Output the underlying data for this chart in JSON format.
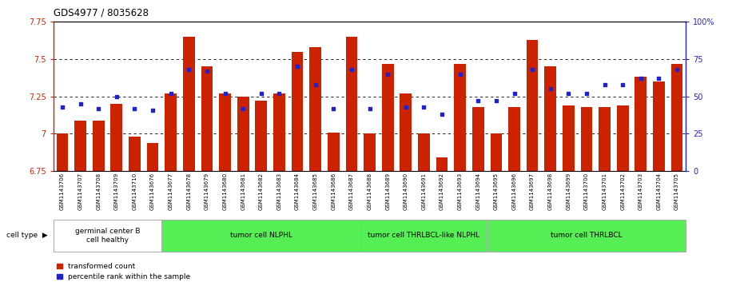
{
  "title": "GDS4977 / 8035628",
  "samples": [
    "GSM1143706",
    "GSM1143707",
    "GSM1143708",
    "GSM1143709",
    "GSM1143710",
    "GSM1143676",
    "GSM1143677",
    "GSM1143678",
    "GSM1143679",
    "GSM1143680",
    "GSM1143681",
    "GSM1143682",
    "GSM1143683",
    "GSM1143684",
    "GSM1143685",
    "GSM1143686",
    "GSM1143687",
    "GSM1143688",
    "GSM1143689",
    "GSM1143690",
    "GSM1143691",
    "GSM1143692",
    "GSM1143693",
    "GSM1143694",
    "GSM1143695",
    "GSM1143696",
    "GSM1143697",
    "GSM1143698",
    "GSM1143699",
    "GSM1143700",
    "GSM1143701",
    "GSM1143702",
    "GSM1143703",
    "GSM1143704",
    "GSM1143705"
  ],
  "bar_values": [
    7.0,
    7.09,
    7.09,
    7.2,
    6.98,
    6.94,
    7.27,
    7.65,
    7.45,
    7.27,
    7.25,
    7.22,
    7.27,
    7.55,
    7.58,
    7.01,
    7.65,
    7.0,
    7.47,
    7.27,
    7.0,
    6.84,
    7.47,
    7.18,
    7.0,
    7.18,
    7.63,
    7.45,
    7.19,
    7.18,
    7.18,
    7.19,
    7.38,
    7.35,
    7.47
  ],
  "percentile_values": [
    43,
    45,
    42,
    50,
    42,
    41,
    52,
    68,
    67,
    52,
    42,
    52,
    52,
    70,
    58,
    42,
    68,
    42,
    65,
    43,
    43,
    38,
    65,
    47,
    47,
    52,
    68,
    55,
    52,
    52,
    58,
    58,
    62,
    62,
    68
  ],
  "ymin": 6.75,
  "ymax": 7.75,
  "bar_color": "#CC2200",
  "dot_color": "#2222CC",
  "cell_type_groups": [
    {
      "label": "germinal center B\ncell healthy",
      "start": 0,
      "end": 6,
      "color": "#ffffff"
    },
    {
      "label": "tumor cell NLPHL",
      "start": 6,
      "end": 17,
      "color": "#55EE55"
    },
    {
      "label": "tumor cell THRLBCL-like NLPHL",
      "start": 17,
      "end": 24,
      "color": "#55EE55"
    },
    {
      "label": "tumor cell THRLBCL",
      "start": 24,
      "end": 35,
      "color": "#55EE55"
    }
  ],
  "legend_bar_label": "transformed count",
  "legend_dot_label": "percentile rank within the sample",
  "left_yticks": [
    6.75,
    7.0,
    7.25,
    7.5,
    7.75
  ],
  "left_ytick_labels": [
    "6.75",
    "7",
    "7.25",
    "7.5",
    "7.75"
  ],
  "right_yticks": [
    0,
    25,
    50,
    75,
    100
  ],
  "right_ytick_labels": [
    "0",
    "25",
    "50",
    "75",
    "100%"
  ],
  "dotted_line_yvals": [
    7.0,
    7.25,
    7.5
  ],
  "cell_type_label": "cell type",
  "xtick_bg_color": "#d0d0d0",
  "plot_bg_color": "#ffffff"
}
